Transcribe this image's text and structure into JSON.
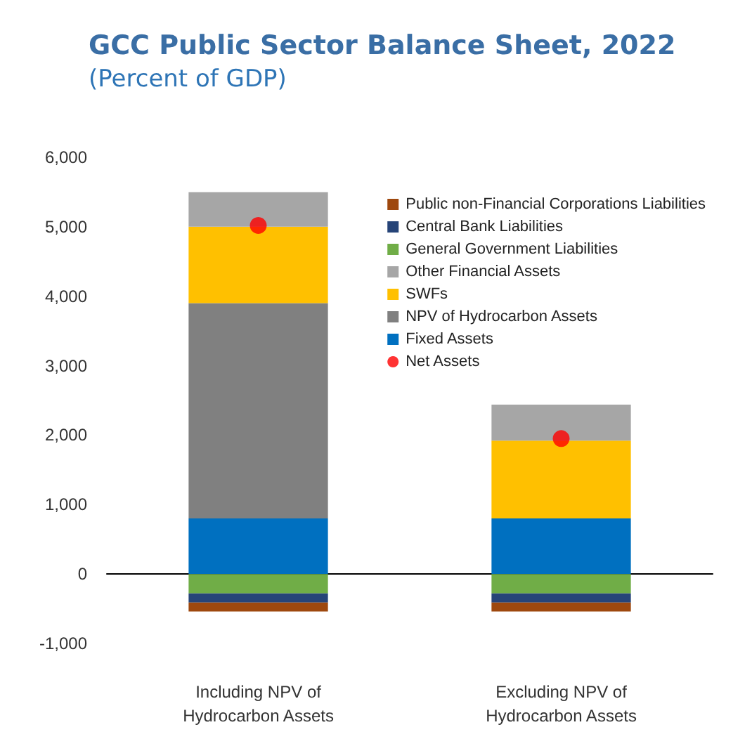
{
  "chart_data": {
    "type": "bar",
    "title": "GCC Public Sector Balance Sheet, 2022",
    "subtitle": "(Percent of GDP)",
    "categories": [
      "Including NPV of\nHydrocarbon Assets",
      "Excluding NPV of\nHydrocarbon Assets"
    ],
    "stacked": true,
    "ylim": [
      -1000,
      6000
    ],
    "yticks": [
      {
        "value": -1000,
        "label": "-1,000"
      },
      0,
      {
        "value": 1000,
        "label": "1,000"
      },
      {
        "value": 2000,
        "label": "2,000"
      },
      {
        "value": 3000,
        "label": "3,000"
      },
      {
        "value": 4000,
        "label": "4,000"
      },
      {
        "value": 5000,
        "label": "5,000"
      },
      {
        "value": 6000,
        "label": "6,000"
      }
    ],
    "legend": "top right",
    "series": [
      {
        "name": "Fixed Assets",
        "color": "#0070c0",
        "values": [
          800,
          800
        ]
      },
      {
        "name": "NPV of Hydrocarbon Assets",
        "color": "#808080",
        "values": [
          3100,
          0
        ]
      },
      {
        "name": "SWFs",
        "color": "#ffc000",
        "values": [
          1100,
          1120
        ]
      },
      {
        "name": "Other Financial Assets",
        "color": "#a6a6a6",
        "values": [
          500,
          520
        ]
      },
      {
        "name": "General Government Liabilities",
        "color": "#70ad47",
        "values": [
          -280,
          -280
        ]
      },
      {
        "name": "Central Bank Liabilities",
        "color": "#264478",
        "values": [
          -130,
          -130
        ]
      },
      {
        "name": "Public non-Financial Corporations Liabilities",
        "color": "#9e480e",
        "values": [
          -130,
          -130
        ]
      },
      {
        "name": "Net Assets",
        "type": "scatter",
        "marker": "circle",
        "color": "#ff0000",
        "x": [
          "Including NPV of\nHydrocarbon Assets",
          "Excluding NPV of\nHydrocarbon Assets"
        ],
        "values": [
          5020,
          1950
        ]
      }
    ]
  }
}
